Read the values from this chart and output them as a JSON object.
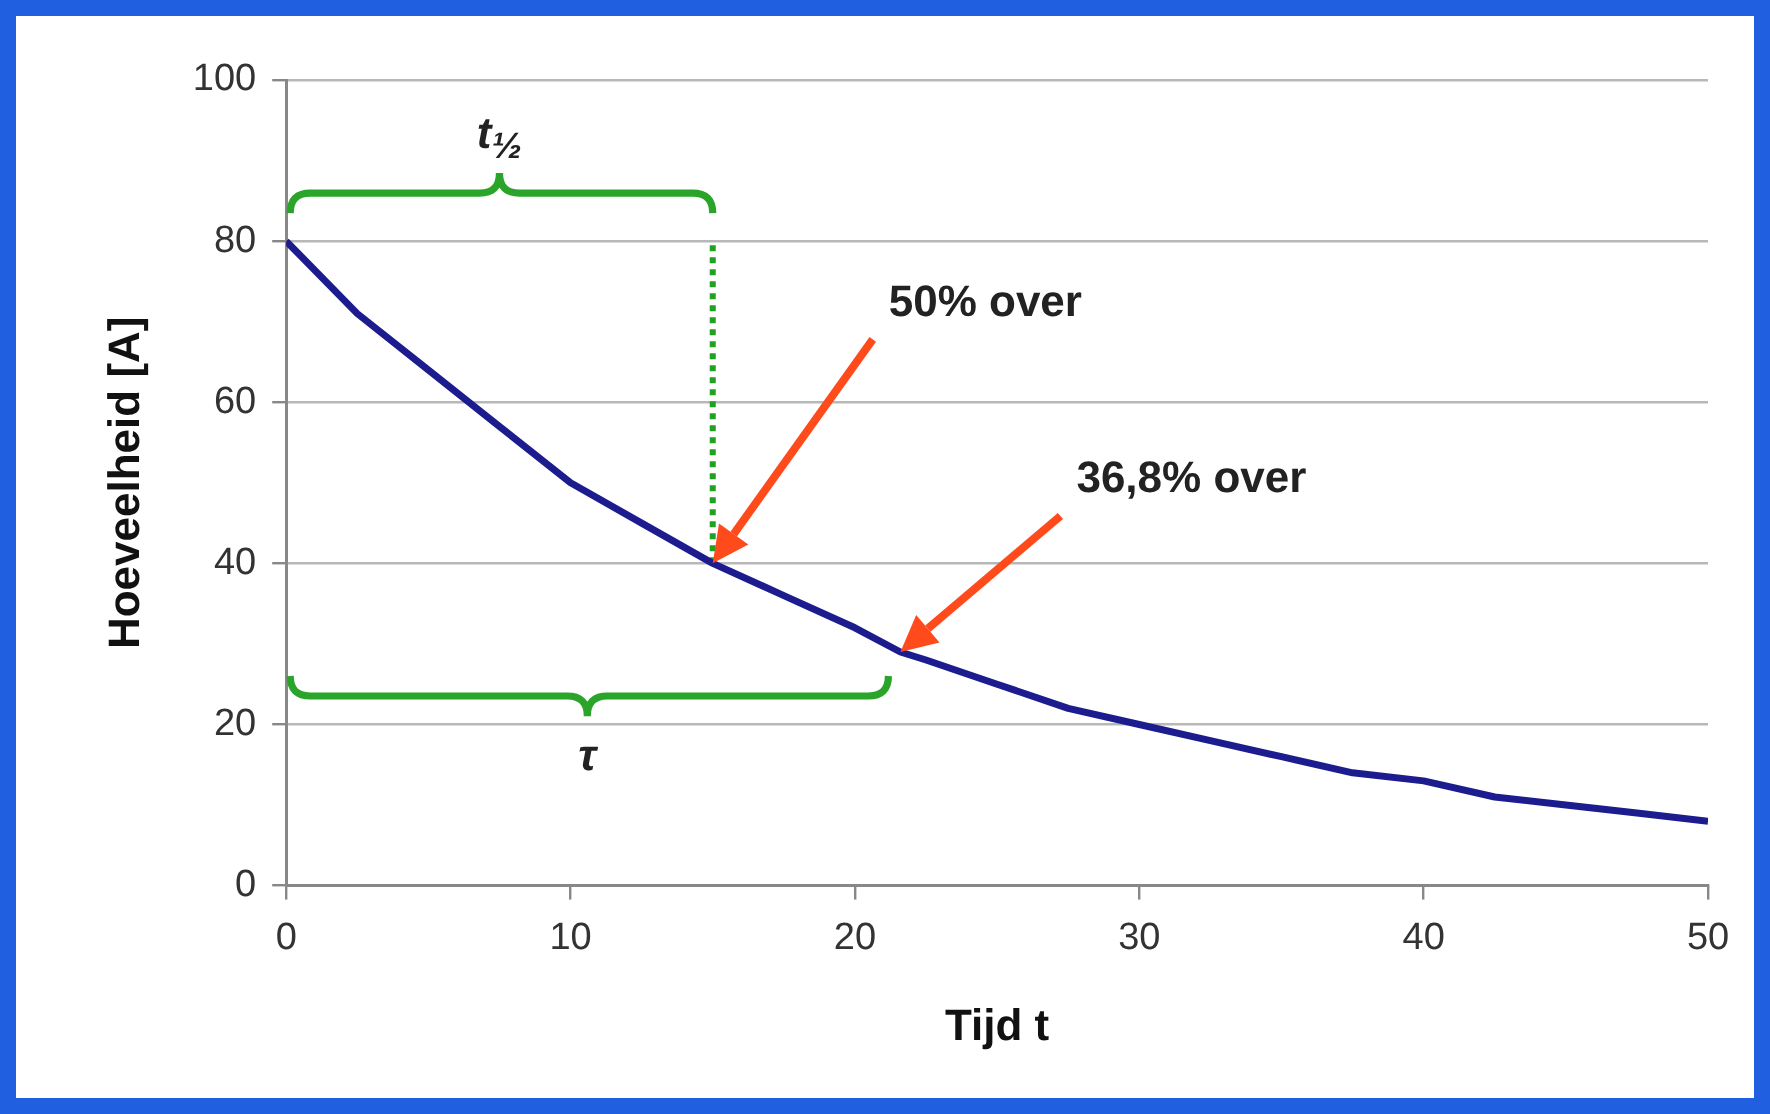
{
  "chart_data": {
    "type": "line",
    "xlabel": "Tijd t",
    "ylabel": "Hoeveelheid [A]",
    "x": [
      0,
      2.5,
      5,
      7.5,
      10,
      12.5,
      15,
      17.5,
      20,
      21.6,
      22.5,
      25,
      27.5,
      30,
      32.5,
      35,
      37.5,
      40,
      42.5,
      45,
      47.5,
      50
    ],
    "series": [
      {
        "color": "#1c1c8f",
        "values": [
          80,
          71,
          64,
          57,
          50,
          45,
          40,
          36,
          32,
          29,
          28,
          25,
          22,
          20,
          18,
          16,
          14,
          13,
          11,
          10,
          9,
          8
        ]
      },
      {
        "type": "line",
        "color": "#22a022",
        "x": [
          15,
          15
        ],
        "values": [
          40,
          80
        ],
        "line_style": "dotted"
      }
    ],
    "xlim": [
      0,
      50
    ],
    "xticks": [
      0,
      10,
      20,
      30,
      40,
      50
    ],
    "ylim": [
      0,
      100
    ],
    "yticks": [
      0,
      20,
      40,
      60,
      80,
      100
    ],
    "grid": "y",
    "marker": "none",
    "annotations": [
      "t$_{½}$",
      "τ",
      "50% over",
      "36,8% over"
    ]
  }
}
